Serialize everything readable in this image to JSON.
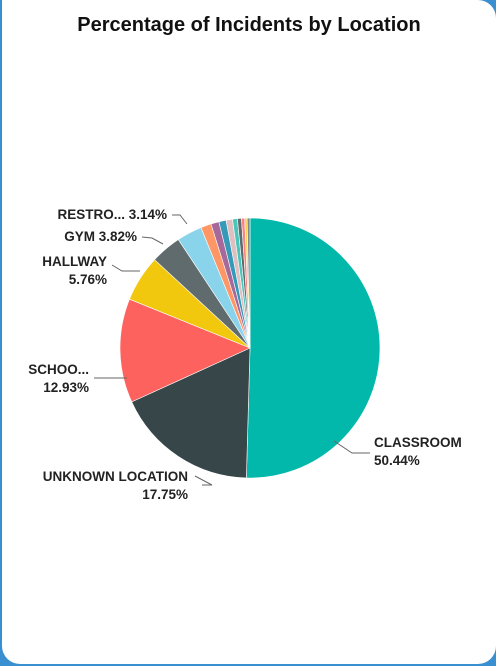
{
  "chart_data": {
    "type": "pie",
    "title": "Percentage of Incidents by Location",
    "start_angle_deg": 0,
    "direction": "clockwise",
    "legend": "none",
    "slices": [
      {
        "label": "CLASSROOM",
        "value": 50.44,
        "color": "#01b8aa",
        "display": [
          "CLASSROOM",
          "50.44%"
        ]
      },
      {
        "label": "UNKNOWN LOCATION",
        "value": 17.75,
        "color": "#374649",
        "display": [
          "UNKNOWN LOCATION",
          "17.75%"
        ]
      },
      {
        "label": "SCHOO...",
        "value": 12.93,
        "color": "#fd625e",
        "display": [
          "SCHOO...",
          "12.93%"
        ]
      },
      {
        "label": "HALLWAY",
        "value": 5.76,
        "color": "#f2c80f",
        "display": [
          "HALLWAY",
          "5.76%"
        ]
      },
      {
        "label": "GYM",
        "value": 3.82,
        "color": "#5f6b6d",
        "display": [
          "GYM 3.82%"
        ]
      },
      {
        "label": "RESTRO...",
        "value": 3.14,
        "color": "#8ad4eb",
        "display": [
          "RESTRO... 3.14%"
        ]
      },
      {
        "label": "",
        "value": 1.3,
        "color": "#fe9666",
        "display": []
      },
      {
        "label": "",
        "value": 1.0,
        "color": "#a66999",
        "display": []
      },
      {
        "label": "",
        "value": 0.9,
        "color": "#3599b8",
        "display": []
      },
      {
        "label": "",
        "value": 0.8,
        "color": "#dfbfbf",
        "display": []
      },
      {
        "label": "",
        "value": 0.6,
        "color": "#4ac5bb",
        "display": []
      },
      {
        "label": "",
        "value": 0.5,
        "color": "#5f6b6d",
        "display": []
      },
      {
        "label": "",
        "value": 0.4,
        "color": "#fb8281",
        "display": []
      },
      {
        "label": "",
        "value": 0.3,
        "color": "#f4d25a",
        "display": []
      },
      {
        "label": "",
        "value": 0.35,
        "color": "#7f898a",
        "display": []
      }
    ]
  }
}
